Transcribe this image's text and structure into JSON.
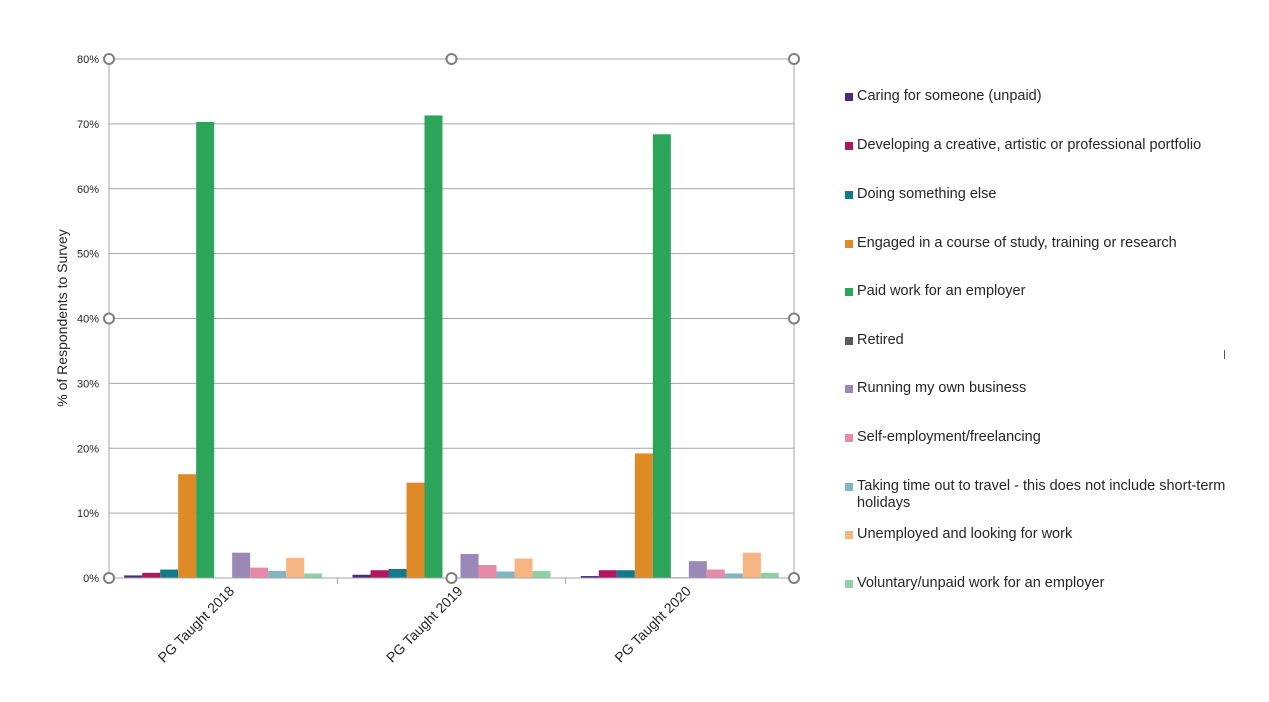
{
  "chart_data": {
    "type": "bar",
    "title": "",
    "xlabel": "",
    "ylabel": "% of Respondents to Survey",
    "ylim": [
      0,
      80
    ],
    "yticks": [
      "0%",
      "10%",
      "20%",
      "30%",
      "40%",
      "50%",
      "60%",
      "70%",
      "80%"
    ],
    "grid": true,
    "legend_position": "right",
    "categories": [
      "PG Taught 2018",
      "PG Taught 2019",
      "PG Taught 2020"
    ],
    "series": [
      {
        "name": "Caring for someone (unpaid)",
        "color": "#4b2a7b",
        "values": [
          0.4,
          0.5,
          0.3
        ]
      },
      {
        "name": "Developing a creative, artistic or professional portfolio",
        "color": "#b0175f",
        "values": [
          0.8,
          1.2,
          1.2
        ]
      },
      {
        "name": "Doing something else",
        "color": "#137a8c",
        "values": [
          1.3,
          1.4,
          1.2
        ]
      },
      {
        "name": "Engaged in a course of study, training or research",
        "color": "#dd8a27",
        "values": [
          16.0,
          14.7,
          19.2
        ]
      },
      {
        "name": "Paid work for an employer",
        "color": "#2ca55a",
        "values": [
          70.3,
          71.3,
          68.4
        ]
      },
      {
        "name": "Retired",
        "color": "#595959",
        "values": [
          0.0,
          0.0,
          0.1
        ]
      },
      {
        "name": "Running my own business",
        "color": "#9a89b6",
        "values": [
          3.9,
          3.7,
          2.6
        ]
      },
      {
        "name": "Self-employment/freelancing",
        "color": "#e68aa7",
        "values": [
          1.6,
          2.0,
          1.3
        ]
      },
      {
        "name": "Taking time out to travel - this does not include short-term holidays",
        "color": "#7fb5c4",
        "values": [
          1.1,
          1.0,
          0.7
        ]
      },
      {
        "name": "Unemployed and looking for work",
        "color": "#f7b584",
        "values": [
          3.1,
          3.0,
          3.9
        ]
      },
      {
        "name": "Voluntary/unpaid work for an employer",
        "color": "#8fd1a5",
        "values": [
          0.7,
          1.1,
          0.8
        ]
      }
    ]
  },
  "legend": {
    "items": [
      "Caring for someone (unpaid)",
      "Developing a creative, artistic or professional portfolio",
      "Doing something else",
      "Engaged in a course of study, training or research",
      "Paid work for an employer",
      "Retired",
      "Running my own business",
      "Self-employment/freelancing",
      "Taking time out to travel - this does not include short-term holidays",
      "Unemployed and looking for work",
      "Voluntary/unpaid work for an employer"
    ]
  },
  "colors": {
    "gridline": "#a6a6a6",
    "axis": "#a6a6a6",
    "text": "#262626"
  }
}
